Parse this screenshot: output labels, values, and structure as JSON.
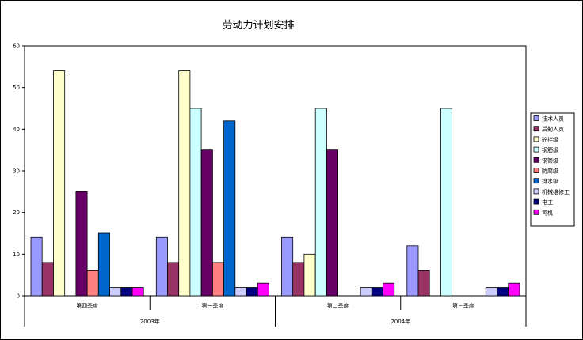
{
  "chart_data": {
    "type": "bar",
    "title": "劳动力计划安排",
    "ylim": [
      0,
      60
    ],
    "yticks": [
      0,
      10,
      20,
      30,
      40,
      50,
      60
    ],
    "grid": false,
    "legend_position": "right",
    "categories": [
      "第四季度",
      "第一季度",
      "第二季度",
      "第三季度"
    ],
    "groups": [
      {
        "label": "2003年",
        "span": [
          0,
          1
        ]
      },
      {
        "label": "2004年",
        "span": [
          2,
          3
        ]
      }
    ],
    "series": [
      {
        "name": "技术人员",
        "color": "#9999ff",
        "values": [
          14,
          14,
          14,
          12
        ]
      },
      {
        "name": "后勤人员",
        "color": "#993366",
        "values": [
          8,
          8,
          8,
          6
        ]
      },
      {
        "name": "砼拌级",
        "color": "#ffffcc",
        "values": [
          54,
          54,
          10,
          0
        ]
      },
      {
        "name": "钢筋级",
        "color": "#ccffff",
        "values": [
          0,
          45,
          45,
          45
        ]
      },
      {
        "name": "钢管级",
        "color": "#660066",
        "values": [
          25,
          35,
          35,
          0
        ]
      },
      {
        "name": "防腐级",
        "color": "#ff8080",
        "values": [
          6,
          8,
          0,
          0
        ]
      },
      {
        "name": "排水级",
        "color": "#0066cc",
        "values": [
          15,
          42,
          0,
          0
        ]
      },
      {
        "name": "机械维修工",
        "color": "#ccccff",
        "values": [
          2,
          2,
          2,
          2
        ]
      },
      {
        "name": "电工",
        "color": "#000080",
        "values": [
          2,
          2,
          2,
          2
        ]
      },
      {
        "name": "司机",
        "color": "#ff00ff",
        "values": [
          2,
          3,
          3,
          3
        ]
      }
    ]
  }
}
